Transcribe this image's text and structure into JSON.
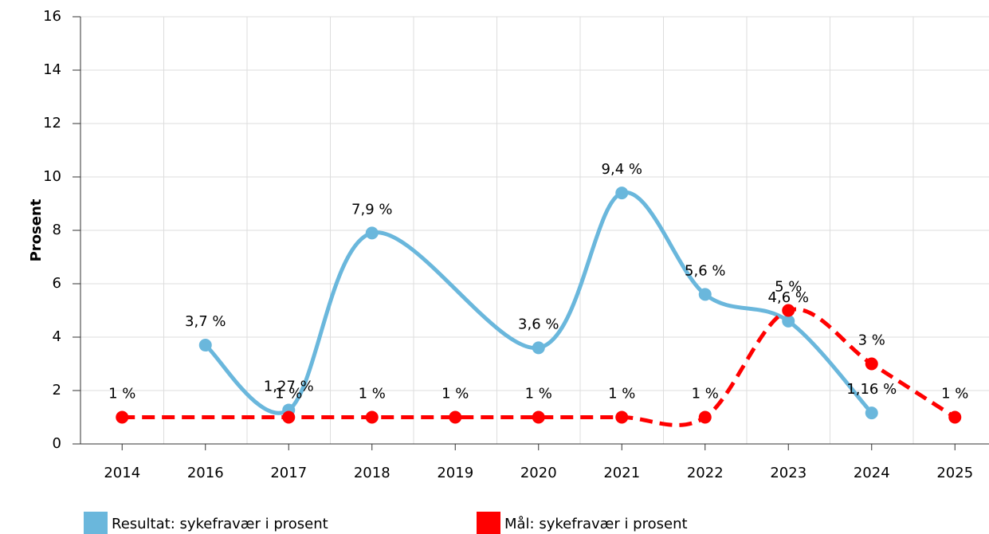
{
  "chart_data": {
    "type": "line",
    "y_label": "Prosent",
    "categories": [
      "2014",
      "2016",
      "2017",
      "2018",
      "2019",
      "2020",
      "2021",
      "2022",
      "2023",
      "2024",
      "2025"
    ],
    "series": [
      {
        "name": "Resultat: sykefravær i prosent",
        "color": "#6ab7dc",
        "values": [
          null,
          3.7,
          1.27,
          7.9,
          null,
          3.6,
          9.4,
          5.6,
          4.6,
          1.16,
          null
        ],
        "value_labels": [
          null,
          "3,7 %",
          "1,27 %",
          "7,9 %",
          null,
          "3,6 %",
          "9,4 %",
          "5,6 %",
          "4,6 %",
          "1,16 %",
          null
        ]
      },
      {
        "name": "Mål: sykefravær i prosent",
        "color": "#ff0000",
        "dashed": true,
        "values": [
          1,
          null,
          1,
          1,
          1,
          1,
          1,
          1,
          5,
          3,
          1
        ],
        "value_labels": [
          "1 %",
          null,
          "1 %",
          "1 %",
          "1 %",
          "1 %",
          "1 %",
          "1 %",
          "5 %",
          "3 %",
          "1 %"
        ]
      }
    ],
    "connect_nulls": true,
    "ylim": [
      0,
      16
    ],
    "yticks": [
      0,
      2,
      4,
      6,
      8,
      10,
      12,
      14,
      16
    ],
    "grid": true,
    "legend": "bottom"
  }
}
